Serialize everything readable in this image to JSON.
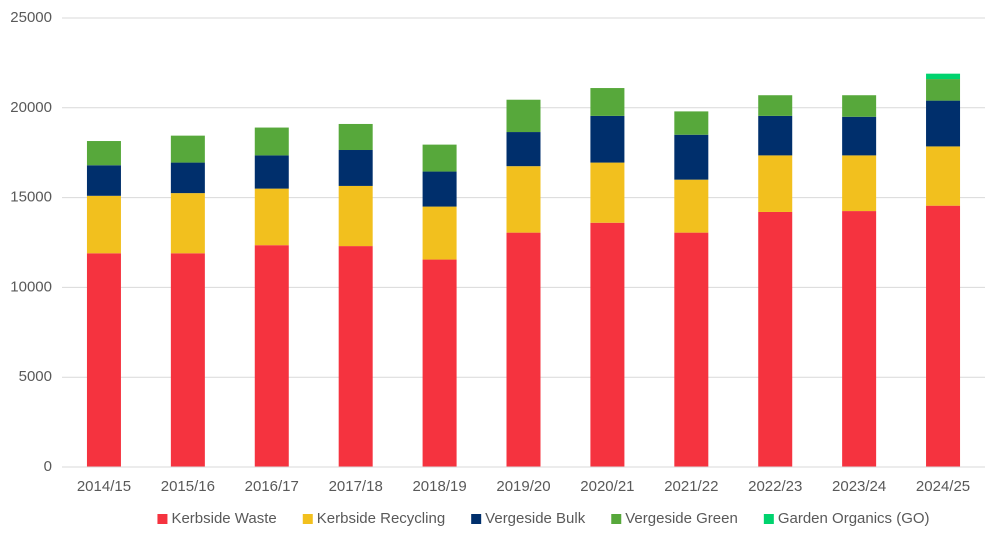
{
  "chart_data": {
    "type": "stacked_bar",
    "categories": [
      "2014/15",
      "2015/16",
      "2016/17",
      "2017/18",
      "2018/19",
      "2019/20",
      "2020/21",
      "2021/22",
      "2022/23",
      "2023/24",
      "2024/25"
    ],
    "series": [
      {
        "name": "Kerbside Waste",
        "color": "#f5333f",
        "values": [
          11900,
          11900,
          12350,
          12300,
          11550,
          13050,
          13600,
          13050,
          14200,
          14250,
          14550
        ]
      },
      {
        "name": "Kerbside Recycling",
        "color": "#f2c01e",
        "values": [
          3200,
          3350,
          3150,
          3350,
          2950,
          3700,
          3350,
          2950,
          3150,
          3100,
          3300
        ]
      },
      {
        "name": "Vergeside Bulk",
        "color": "#002f6c",
        "values": [
          1700,
          1700,
          1850,
          2000,
          1950,
          1900,
          2600,
          2500,
          2200,
          2150,
          2550
        ]
      },
      {
        "name": "Vergeside Green",
        "color": "#57a83b",
        "values": [
          1350,
          1500,
          1550,
          1450,
          1500,
          1800,
          1550,
          1300,
          1150,
          1200,
          1200
        ]
      },
      {
        "name": "Garden Organics (GO)",
        "color": "#00d36e",
        "values": [
          0,
          0,
          0,
          0,
          0,
          0,
          0,
          0,
          0,
          0,
          300
        ]
      }
    ],
    "ylim": [
      0,
      25000
    ],
    "yticks": [
      0,
      5000,
      10000,
      15000,
      20000,
      25000
    ],
    "grid": true,
    "legend": "bottom"
  }
}
